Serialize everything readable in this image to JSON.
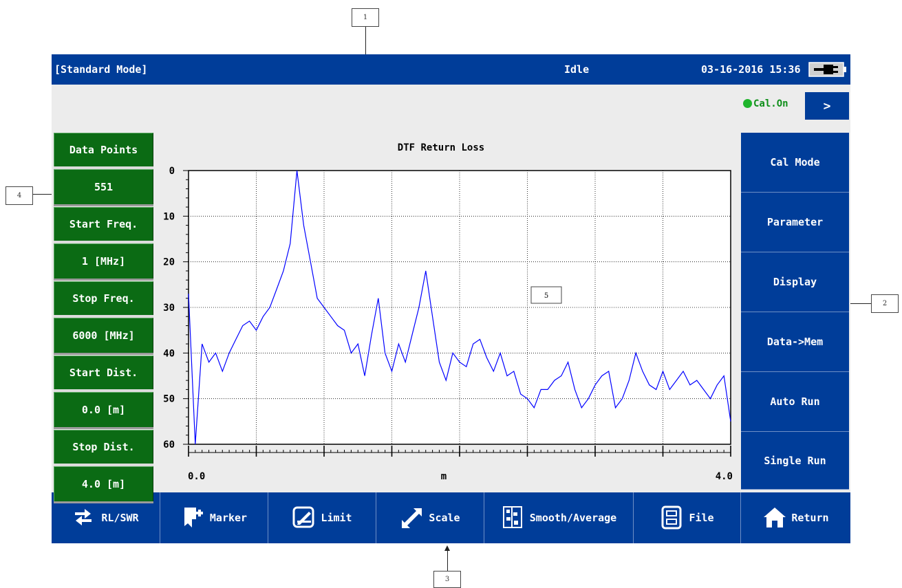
{
  "status_bar": {
    "mode": "[Standard Mode]",
    "state": "Idle",
    "datetime": "03-16-2016 15:36",
    "battery_icon": "plug-battery-icon"
  },
  "calibration": {
    "label": "Cal.On",
    "indicator_color": "#1fb52c",
    "next_label": ">"
  },
  "left_panel": {
    "items": [
      {
        "label": "Data Points",
        "value": "551"
      },
      {
        "label": "Start Freq.",
        "value": "1 [MHz]"
      },
      {
        "label": "Stop Freq.",
        "value": "6000 [MHz]"
      },
      {
        "label": "Start Dist.",
        "value": "0.0 [m]"
      },
      {
        "label": "Stop Dist.",
        "value": "4.0 [m]"
      }
    ]
  },
  "right_menu": {
    "items": [
      {
        "label": "Cal Mode"
      },
      {
        "label": "Parameter"
      },
      {
        "label": "Display"
      },
      {
        "label": "Data->Mem"
      },
      {
        "label": "Auto Run"
      },
      {
        "label": "Single Run"
      }
    ]
  },
  "bottom_toolbar": {
    "items": [
      {
        "label": "RL/SWR",
        "icon": "swap-arrows-icon"
      },
      {
        "label": "Marker",
        "icon": "marker-flag-icon"
      },
      {
        "label": "Limit",
        "icon": "limit-edit-icon"
      },
      {
        "label": "Scale",
        "icon": "scale-arrows-icon"
      },
      {
        "label": "Smooth/Average",
        "icon": "smooth-sliders-icon"
      },
      {
        "label": "File",
        "icon": "file-cabinet-icon"
      },
      {
        "label": "Return",
        "icon": "home-icon"
      }
    ]
  },
  "callouts": [
    "1",
    "2",
    "3",
    "4",
    "5"
  ],
  "colors": {
    "device_blue": "#003d99",
    "panel_green": "#0b6b14",
    "trace": "#0000ff",
    "background": "#ececec"
  },
  "chart_data": {
    "type": "line",
    "title": "DTF Return Loss",
    "xlabel": "m",
    "ylabel": "",
    "x_tick_labels": [
      "0.0",
      "4.0"
    ],
    "y_tick_labels": [
      "0",
      "10",
      "20",
      "30",
      "40",
      "50",
      "60"
    ],
    "xlim": [
      0.0,
      4.0
    ],
    "ylim": [
      0,
      60
    ],
    "y_inverted": true,
    "grid": true,
    "x_major_divisions": 8,
    "series": [
      {
        "color": "#0000ff",
        "x": [
          0.0,
          0.05,
          0.1,
          0.15,
          0.2,
          0.25,
          0.3,
          0.35,
          0.4,
          0.45,
          0.5,
          0.55,
          0.6,
          0.65,
          0.7,
          0.75,
          0.8,
          0.85,
          0.9,
          0.95,
          1.0,
          1.05,
          1.1,
          1.15,
          1.2,
          1.25,
          1.3,
          1.35,
          1.4,
          1.45,
          1.5,
          1.55,
          1.6,
          1.65,
          1.7,
          1.75,
          1.8,
          1.85,
          1.9,
          1.95,
          2.0,
          2.05,
          2.1,
          2.15,
          2.2,
          2.25,
          2.3,
          2.35,
          2.4,
          2.45,
          2.5,
          2.55,
          2.6,
          2.65,
          2.7,
          2.75,
          2.8,
          2.85,
          2.9,
          2.95,
          3.0,
          3.05,
          3.1,
          3.15,
          3.2,
          3.25,
          3.3,
          3.35,
          3.4,
          3.45,
          3.5,
          3.55,
          3.6,
          3.65,
          3.7,
          3.75,
          3.8,
          3.85,
          3.9,
          3.95,
          4.0
        ],
        "y": [
          27,
          60,
          38,
          42,
          40,
          44,
          40,
          37,
          34,
          33,
          35,
          32,
          30,
          26,
          22,
          16,
          0,
          12,
          20,
          28,
          30,
          32,
          34,
          35,
          40,
          38,
          45,
          36,
          28,
          40,
          44,
          38,
          42,
          36,
          30,
          22,
          32,
          42,
          46,
          40,
          42,
          43,
          38,
          37,
          41,
          44,
          40,
          45,
          44,
          49,
          50,
          52,
          48,
          48,
          46,
          45,
          42,
          48,
          52,
          50,
          47,
          45,
          44,
          52,
          50,
          46,
          40,
          44,
          47,
          48,
          44,
          48,
          46,
          44,
          47,
          46,
          48,
          50,
          47,
          45,
          55
        ]
      }
    ]
  }
}
